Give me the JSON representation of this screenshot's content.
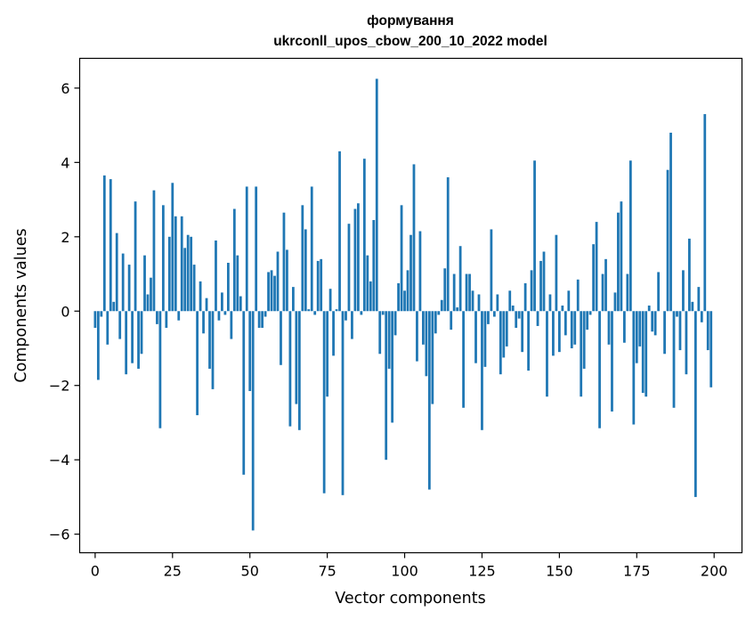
{
  "chart_data": {
    "type": "bar",
    "title_line1": "формування",
    "title_line2": "ukrconll_upos_cbow_200_10_2022 model",
    "xlabel": "Vector components",
    "ylabel": "Components values",
    "xlim": [
      -5,
      209
    ],
    "ylim": [
      -6.5,
      6.8
    ],
    "grid": false,
    "bar_color": "#1f77b4",
    "x_ticks": [
      0,
      25,
      50,
      75,
      100,
      125,
      150,
      175,
      200
    ],
    "x_tick_labels": [
      "0",
      "25",
      "50",
      "75",
      "100",
      "125",
      "150",
      "175",
      "200"
    ],
    "y_ticks": [
      -6,
      -4,
      -2,
      0,
      2,
      4,
      6
    ],
    "y_tick_labels": [
      "−6",
      "−4",
      "−2",
      "0",
      "2",
      "4",
      "6"
    ],
    "values": [
      -0.45,
      -1.85,
      -0.15,
      3.65,
      -0.9,
      3.55,
      0.25,
      2.1,
      -0.75,
      1.55,
      -1.7,
      1.25,
      -1.4,
      2.95,
      -1.55,
      -1.15,
      1.5,
      0.45,
      0.9,
      3.25,
      -0.35,
      -3.15,
      2.85,
      -0.45,
      2.0,
      3.45,
      2.55,
      -0.25,
      2.55,
      1.7,
      2.05,
      2.0,
      1.25,
      -2.8,
      0.8,
      -0.6,
      0.35,
      -1.55,
      -2.1,
      1.9,
      -0.25,
      0.5,
      -0.1,
      1.3,
      -0.75,
      2.75,
      1.5,
      0.4,
      -4.4,
      3.35,
      -2.15,
      -5.9,
      3.35,
      -0.45,
      -0.45,
      -0.15,
      1.05,
      1.1,
      0.95,
      1.6,
      -1.45,
      2.65,
      1.65,
      -3.1,
      0.65,
      -2.5,
      -3.2,
      2.85,
      2.2,
      0.05,
      3.35,
      -0.1,
      1.35,
      1.4,
      -4.9,
      -2.3,
      0.6,
      -1.2,
      0.05,
      4.3,
      -4.95,
      -0.25,
      2.35,
      -0.75,
      2.75,
      2.9,
      -0.1,
      4.1,
      1.5,
      0.8,
      2.45,
      6.25,
      -1.15,
      -0.1,
      -4.0,
      -1.55,
      -3.0,
      -0.65,
      0.75,
      2.85,
      0.55,
      1.1,
      2.05,
      3.95,
      -1.35,
      2.15,
      -0.9,
      -1.75,
      -4.8,
      -2.5,
      -0.6,
      -0.1,
      0.3,
      1.15,
      3.6,
      -0.5,
      1.0,
      0.1,
      1.75,
      -2.6,
      1.0,
      1.0,
      0.55,
      -1.4,
      0.45,
      -3.2,
      -1.5,
      -0.35,
      2.2,
      -0.15,
      0.45,
      -1.7,
      -1.25,
      -0.95,
      0.55,
      0.15,
      -0.45,
      -0.2,
      -1.1,
      0.75,
      -1.6,
      1.1,
      4.05,
      -0.4,
      1.35,
      1.6,
      -2.3,
      0.45,
      -1.2,
      2.05,
      -1.1,
      0.15,
      -0.65,
      0.55,
      -1.0,
      -0.9,
      0.85,
      -2.3,
      -1.55,
      -0.5,
      -0.1,
      1.8,
      2.4,
      -3.15,
      1.0,
      1.4,
      -0.9,
      -2.7,
      0.5,
      2.65,
      2.95,
      -0.85,
      1.0,
      4.05,
      -3.05,
      -1.4,
      -0.95,
      -2.2,
      -2.3,
      0.15,
      -0.55,
      -0.65,
      1.05,
      0.0,
      -1.15,
      3.8,
      4.8,
      -2.6,
      -0.15,
      -1.05,
      1.1,
      -1.7,
      1.95,
      0.25,
      -5.0,
      0.65,
      -0.3,
      5.3,
      -1.05,
      -2.05
    ]
  }
}
